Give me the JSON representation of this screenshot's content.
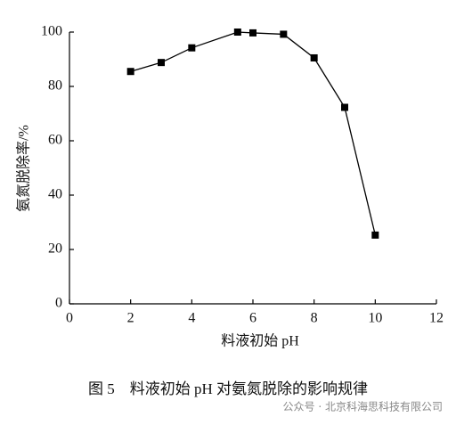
{
  "chart_data": {
    "type": "line",
    "x_label": "料液初始 pH",
    "y_label": "氨氮脱除率/%",
    "x": [
      2,
      3,
      4,
      5.5,
      6,
      7,
      8,
      9,
      10
    ],
    "series": [
      {
        "values": [
          85.5,
          88.8,
          94.2,
          100,
          99.7,
          99.2,
          90.5,
          72.3,
          25.3
        ],
        "color": "#000000"
      }
    ],
    "xlim": [
      0,
      12
    ],
    "xticks": [
      0,
      2,
      4,
      6,
      8,
      10,
      12
    ],
    "ylim": [
      0,
      100
    ],
    "yticks": [
      0,
      20,
      40,
      60,
      80,
      100
    ]
  },
  "caption": "图 5　料液初始 pH 对氨氮脱除的影响规律",
  "watermark": "公众号 · 北京科海思科技有限公司"
}
